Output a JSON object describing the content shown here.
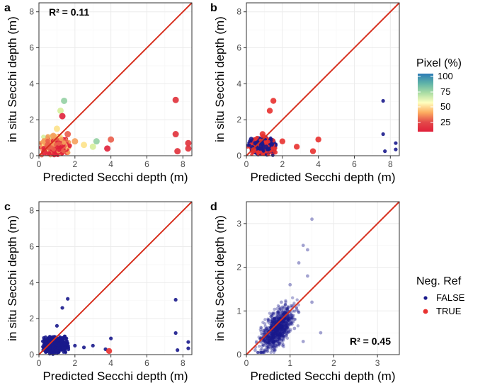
{
  "chart_data": [
    {
      "panel": "a",
      "type": "scatter",
      "xlabel": "Predicted Secchi depth (m)",
      "ylabel": "in situ Secchi depth (m)",
      "xlim": [
        0,
        8.5
      ],
      "ylim": [
        0,
        8.5
      ],
      "xticks": [
        0,
        2,
        4,
        6,
        8
      ],
      "yticks": [
        0,
        2,
        4,
        6,
        8
      ],
      "annotation": "R² = 0.11",
      "annotation_position": "top-left",
      "color_by": "Pixel (%)",
      "reference_line": "1:1",
      "points": [
        [
          0.3,
          0.2
        ],
        [
          0.5,
          0.6
        ],
        [
          0.8,
          1.1
        ],
        [
          1.0,
          1.5
        ],
        [
          1.2,
          2.5
        ],
        [
          1.4,
          3.05
        ],
        [
          1.3,
          2.2
        ],
        [
          1.6,
          1.2
        ],
        [
          2.0,
          0.8
        ],
        [
          2.5,
          0.6
        ],
        [
          3.0,
          0.5
        ],
        [
          3.2,
          0.8
        ],
        [
          3.8,
          0.4
        ],
        [
          4.0,
          0.9
        ],
        [
          7.6,
          3.1
        ],
        [
          7.6,
          1.2
        ],
        [
          7.7,
          0.25
        ],
        [
          8.3,
          0.7
        ],
        [
          8.3,
          0.4
        ]
      ]
    },
    {
      "panel": "b",
      "type": "scatter",
      "xlabel": "Predicted Secchi depth (m)",
      "ylabel": "in situ Secchi depth (m)",
      "xlim": [
        0,
        8.5
      ],
      "ylim": [
        0,
        8.5
      ],
      "xticks": [
        0,
        2,
        4,
        6,
        8
      ],
      "yticks": [
        0,
        2,
        4,
        6,
        8
      ],
      "color_by": "Neg. Ref",
      "reference_line": "1:1",
      "points": [
        [
          0.4,
          0.3
        ],
        [
          0.9,
          1.2
        ],
        [
          1.3,
          2.5
        ],
        [
          1.5,
          3.05
        ],
        [
          2.0,
          0.8
        ],
        [
          2.8,
          0.5
        ],
        [
          4.0,
          0.9
        ],
        [
          3.7,
          0.25
        ],
        [
          7.6,
          3.05
        ],
        [
          7.6,
          1.2
        ],
        [
          7.7,
          0.25
        ],
        [
          8.3,
          0.7
        ],
        [
          8.3,
          0.35
        ]
      ]
    },
    {
      "panel": "c",
      "type": "scatter",
      "xlabel": "Predicted Secchi depth (m)",
      "ylabel": "in situ Secchi depth (m)",
      "xlim": [
        0,
        8.5
      ],
      "ylim": [
        0,
        8.5
      ],
      "xticks": [
        0,
        2,
        4,
        6,
        8
      ],
      "yticks": [
        0,
        2,
        4,
        6,
        8
      ],
      "color_by": "Neg. Ref",
      "reference_line": "1:1",
      "points": [
        [
          0.5,
          0.5
        ],
        [
          1.0,
          1.6
        ],
        [
          1.3,
          2.6
        ],
        [
          1.6,
          3.1
        ],
        [
          2.0,
          0.5
        ],
        [
          2.5,
          0.4
        ],
        [
          3.0,
          0.5
        ],
        [
          3.7,
          0.3
        ],
        [
          3.9,
          0.2
        ],
        [
          4.0,
          0.9
        ],
        [
          7.6,
          3.05
        ],
        [
          7.6,
          1.2
        ],
        [
          7.7,
          0.25
        ],
        [
          8.3,
          0.7
        ],
        [
          8.3,
          0.35
        ]
      ]
    },
    {
      "panel": "d",
      "type": "scatter",
      "xlabel": "Predicted Secchi depth (m)",
      "ylabel": "in situ Secchi depth (m)",
      "xlim": [
        0,
        3.5
      ],
      "ylim": [
        0,
        3.5
      ],
      "xticks": [
        0,
        1,
        2,
        3
      ],
      "yticks": [
        0,
        1,
        2,
        3
      ],
      "annotation": "R² = 0.45",
      "annotation_position": "bottom-right",
      "color_by": "Neg. Ref",
      "reference_line": "1:1",
      "points": [
        [
          0.2,
          0.1
        ],
        [
          0.4,
          0.5
        ],
        [
          0.6,
          0.8
        ],
        [
          0.8,
          1.2
        ],
        [
          1.0,
          1.6
        ],
        [
          1.2,
          2.1
        ],
        [
          1.3,
          2.5
        ],
        [
          1.4,
          2.4
        ],
        [
          1.5,
          3.1
        ],
        [
          1.4,
          1.8
        ],
        [
          1.5,
          1.2
        ],
        [
          1.7,
          0.5
        ],
        [
          1.3,
          0.3
        ],
        [
          1.1,
          0.6
        ]
      ]
    }
  ],
  "legend_pixel": {
    "title": "Pixel (%)",
    "ticks": [
      "100",
      "75",
      "50",
      "25"
    ],
    "colors": [
      "#2c7bb6",
      "#5fb3a8",
      "#abdda4",
      "#ffffbf",
      "#fdae61",
      "#e34a4a",
      "#e0203a"
    ]
  },
  "legend_negref": {
    "title": "Neg. Ref",
    "items": [
      {
        "label": "FALSE",
        "color": "#1a1a8c"
      },
      {
        "label": "TRUE",
        "color": "#e8312f"
      }
    ]
  },
  "colors": {
    "line": "#d7301f",
    "navy": "#1a1a8c",
    "red": "#e8312f",
    "grid_major": "#ebebeb",
    "grid_minor": "#f5f5f5",
    "panel_border": "#333333"
  }
}
